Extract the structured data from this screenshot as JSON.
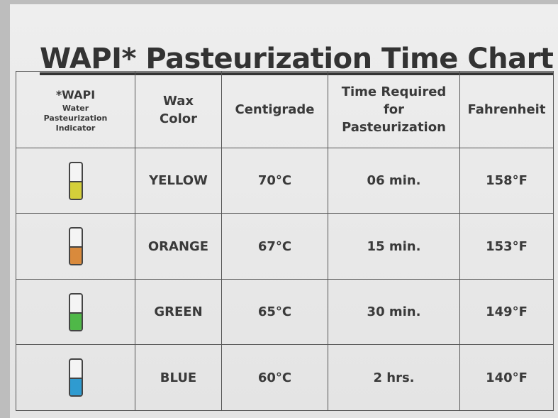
{
  "title": "WAPI* Pasteurization Time Chart",
  "table": {
    "headers": [
      {
        "title": "*WAPI",
        "subtitle": "Water Pasteurization Indicator"
      },
      "Wax Color",
      "Centigrade",
      "Time Required for Pasteurization",
      "Fahrenheit"
    ],
    "rows": [
      {
        "indicator_color": "#d4cf3a",
        "wax_color": "YELLOW",
        "centigrade": "70°C",
        "time": "06 min.",
        "fahrenheit": "158°F"
      },
      {
        "indicator_color": "#d98a3c",
        "wax_color": "ORANGE",
        "centigrade": "67°C",
        "time": "15 min.",
        "fahrenheit": "153°F"
      },
      {
        "indicator_color": "#4fb848",
        "wax_color": "GREEN",
        "centigrade": "65°C",
        "time": "30 min.",
        "fahrenheit": "149°F"
      },
      {
        "indicator_color": "#2f9bd0",
        "wax_color": "BLUE",
        "centigrade": "60°C",
        "time": "2 hrs.",
        "fahrenheit": "140°F"
      }
    ]
  }
}
